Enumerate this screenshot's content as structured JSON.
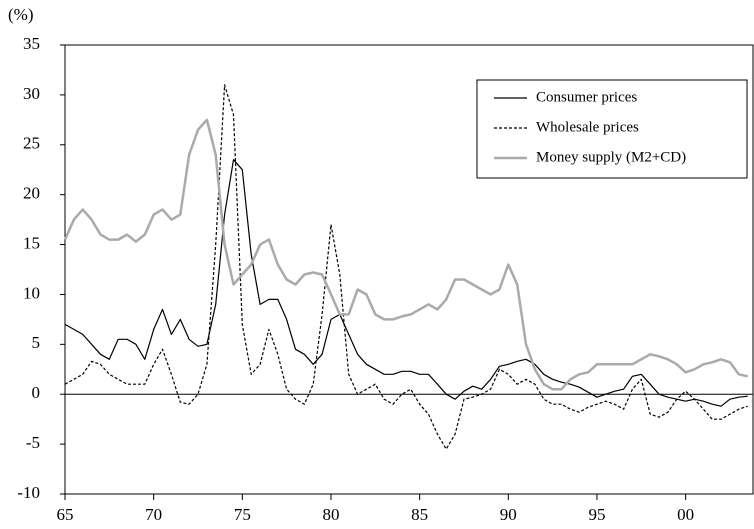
{
  "chart_data": {
    "type": "line",
    "y_label": "(%)",
    "x": [
      1965,
      1965.5,
      1966,
      1966.5,
      1967,
      1967.5,
      1968,
      1968.5,
      1969,
      1969.5,
      1970,
      1970.5,
      1971,
      1971.5,
      1972,
      1972.5,
      1973,
      1973.5,
      1974,
      1974.5,
      1975,
      1975.5,
      1976,
      1976.5,
      1977,
      1977.5,
      1978,
      1978.5,
      1979,
      1979.5,
      1980,
      1980.5,
      1981,
      1981.5,
      1982,
      1982.5,
      1983,
      1983.5,
      1984,
      1984.5,
      1985,
      1985.5,
      1986,
      1986.5,
      1987,
      1987.5,
      1988,
      1988.5,
      1989,
      1989.5,
      1990,
      1990.5,
      1991,
      1991.5,
      1992,
      1992.5,
      1993,
      1993.5,
      1994,
      1994.5,
      1995,
      1995.5,
      1996,
      1996.5,
      1997,
      1997.5,
      1998,
      1998.5,
      1999,
      1999.5,
      2000,
      2000.5,
      2001,
      2001.5,
      2002,
      2002.5,
      2003,
      2003.5
    ],
    "series": [
      {
        "name": "Consumer prices",
        "color": "#000000",
        "dash": "solid",
        "values": [
          7,
          6.5,
          6,
          5,
          4,
          3.5,
          5.5,
          5.5,
          5,
          3.5,
          6.5,
          8.5,
          6,
          7.5,
          5.5,
          4.8,
          5,
          9,
          18,
          23.5,
          22.5,
          14,
          9,
          9.5,
          9.5,
          7.5,
          4.5,
          4,
          3,
          4,
          7.5,
          8,
          6,
          4,
          3,
          2.5,
          2,
          2,
          2.3,
          2.3,
          2,
          2,
          1,
          0,
          -0.5,
          0.3,
          0.8,
          0.5,
          1.5,
          2.8,
          3,
          3.3,
          3.5,
          3,
          2,
          1.5,
          1.2,
          1,
          0.7,
          0.2,
          -0.3,
          0,
          0.3,
          0.5,
          1.8,
          2,
          1,
          0,
          -0.3,
          -0.5,
          -0.7,
          -0.5,
          -0.7,
          -1,
          -1.2,
          -0.5,
          -0.3,
          -0.2
        ]
      },
      {
        "name": "Wholesale prices",
        "color": "#000000",
        "dash": "dashed",
        "values": [
          1,
          1.5,
          2,
          3.3,
          3,
          2,
          1.5,
          1,
          1,
          1,
          3,
          4.5,
          2,
          -0.8,
          -1,
          0,
          3,
          15,
          31,
          28,
          7,
          2,
          3,
          6.5,
          4,
          0.5,
          -0.5,
          -1,
          1,
          8,
          17,
          12,
          2,
          0,
          0.5,
          1,
          -0.5,
          -1,
          0,
          0.5,
          -1,
          -2,
          -4,
          -5.5,
          -4,
          -0.5,
          -0.3,
          0,
          0.5,
          2.5,
          2,
          1,
          1.5,
          1,
          -0.5,
          -1,
          -1,
          -1.5,
          -1.8,
          -1.3,
          -1,
          -0.7,
          -1,
          -1.5,
          0.5,
          1.5,
          -2,
          -2.3,
          -1.8,
          -0.5,
          0.3,
          -0.5,
          -1.5,
          -2.5,
          -2.5,
          -2,
          -1.5,
          -1.2
        ]
      },
      {
        "name": "Money supply (M2+CD)",
        "color": "#aaaaaa",
        "dash": "solid",
        "values": [
          15.5,
          17.5,
          18.5,
          17.5,
          16,
          15.5,
          15.5,
          16,
          15.3,
          16,
          18,
          18.5,
          17.5,
          18,
          24,
          26.5,
          27.5,
          24,
          15,
          11,
          12,
          13,
          15,
          15.5,
          13,
          11.5,
          11,
          12,
          12.2,
          12,
          10,
          8,
          8,
          10.5,
          10,
          8,
          7.5,
          7.5,
          7.8,
          8,
          8.5,
          9,
          8.5,
          9.5,
          11.5,
          11.5,
          11,
          10.5,
          10,
          10.5,
          13,
          11,
          5,
          2.5,
          1,
          0.5,
          0.5,
          1.5,
          2,
          2.2,
          3,
          3,
          3,
          3,
          3,
          3.5,
          4,
          3.8,
          3.5,
          3,
          2.2,
          2.5,
          3,
          3.2,
          3.5,
          3.2,
          2,
          1.8
        ]
      }
    ],
    "xlim": [
      1965,
      2003.8
    ],
    "xticks": [
      {
        "value": 1965,
        "label": "65"
      },
      {
        "value": 1970,
        "label": "70"
      },
      {
        "value": 1975,
        "label": "75"
      },
      {
        "value": 1980,
        "label": "80"
      },
      {
        "value": 1985,
        "label": "85"
      },
      {
        "value": 1990,
        "label": "90"
      },
      {
        "value": 1995,
        "label": "95"
      },
      {
        "value": 2000,
        "label": "00"
      }
    ],
    "ylim": [
      -10,
      35
    ],
    "yticks": [
      -10,
      -5,
      0,
      5,
      10,
      15,
      20,
      25,
      30,
      35
    ],
    "zero_line": true,
    "legend": "upper right"
  }
}
